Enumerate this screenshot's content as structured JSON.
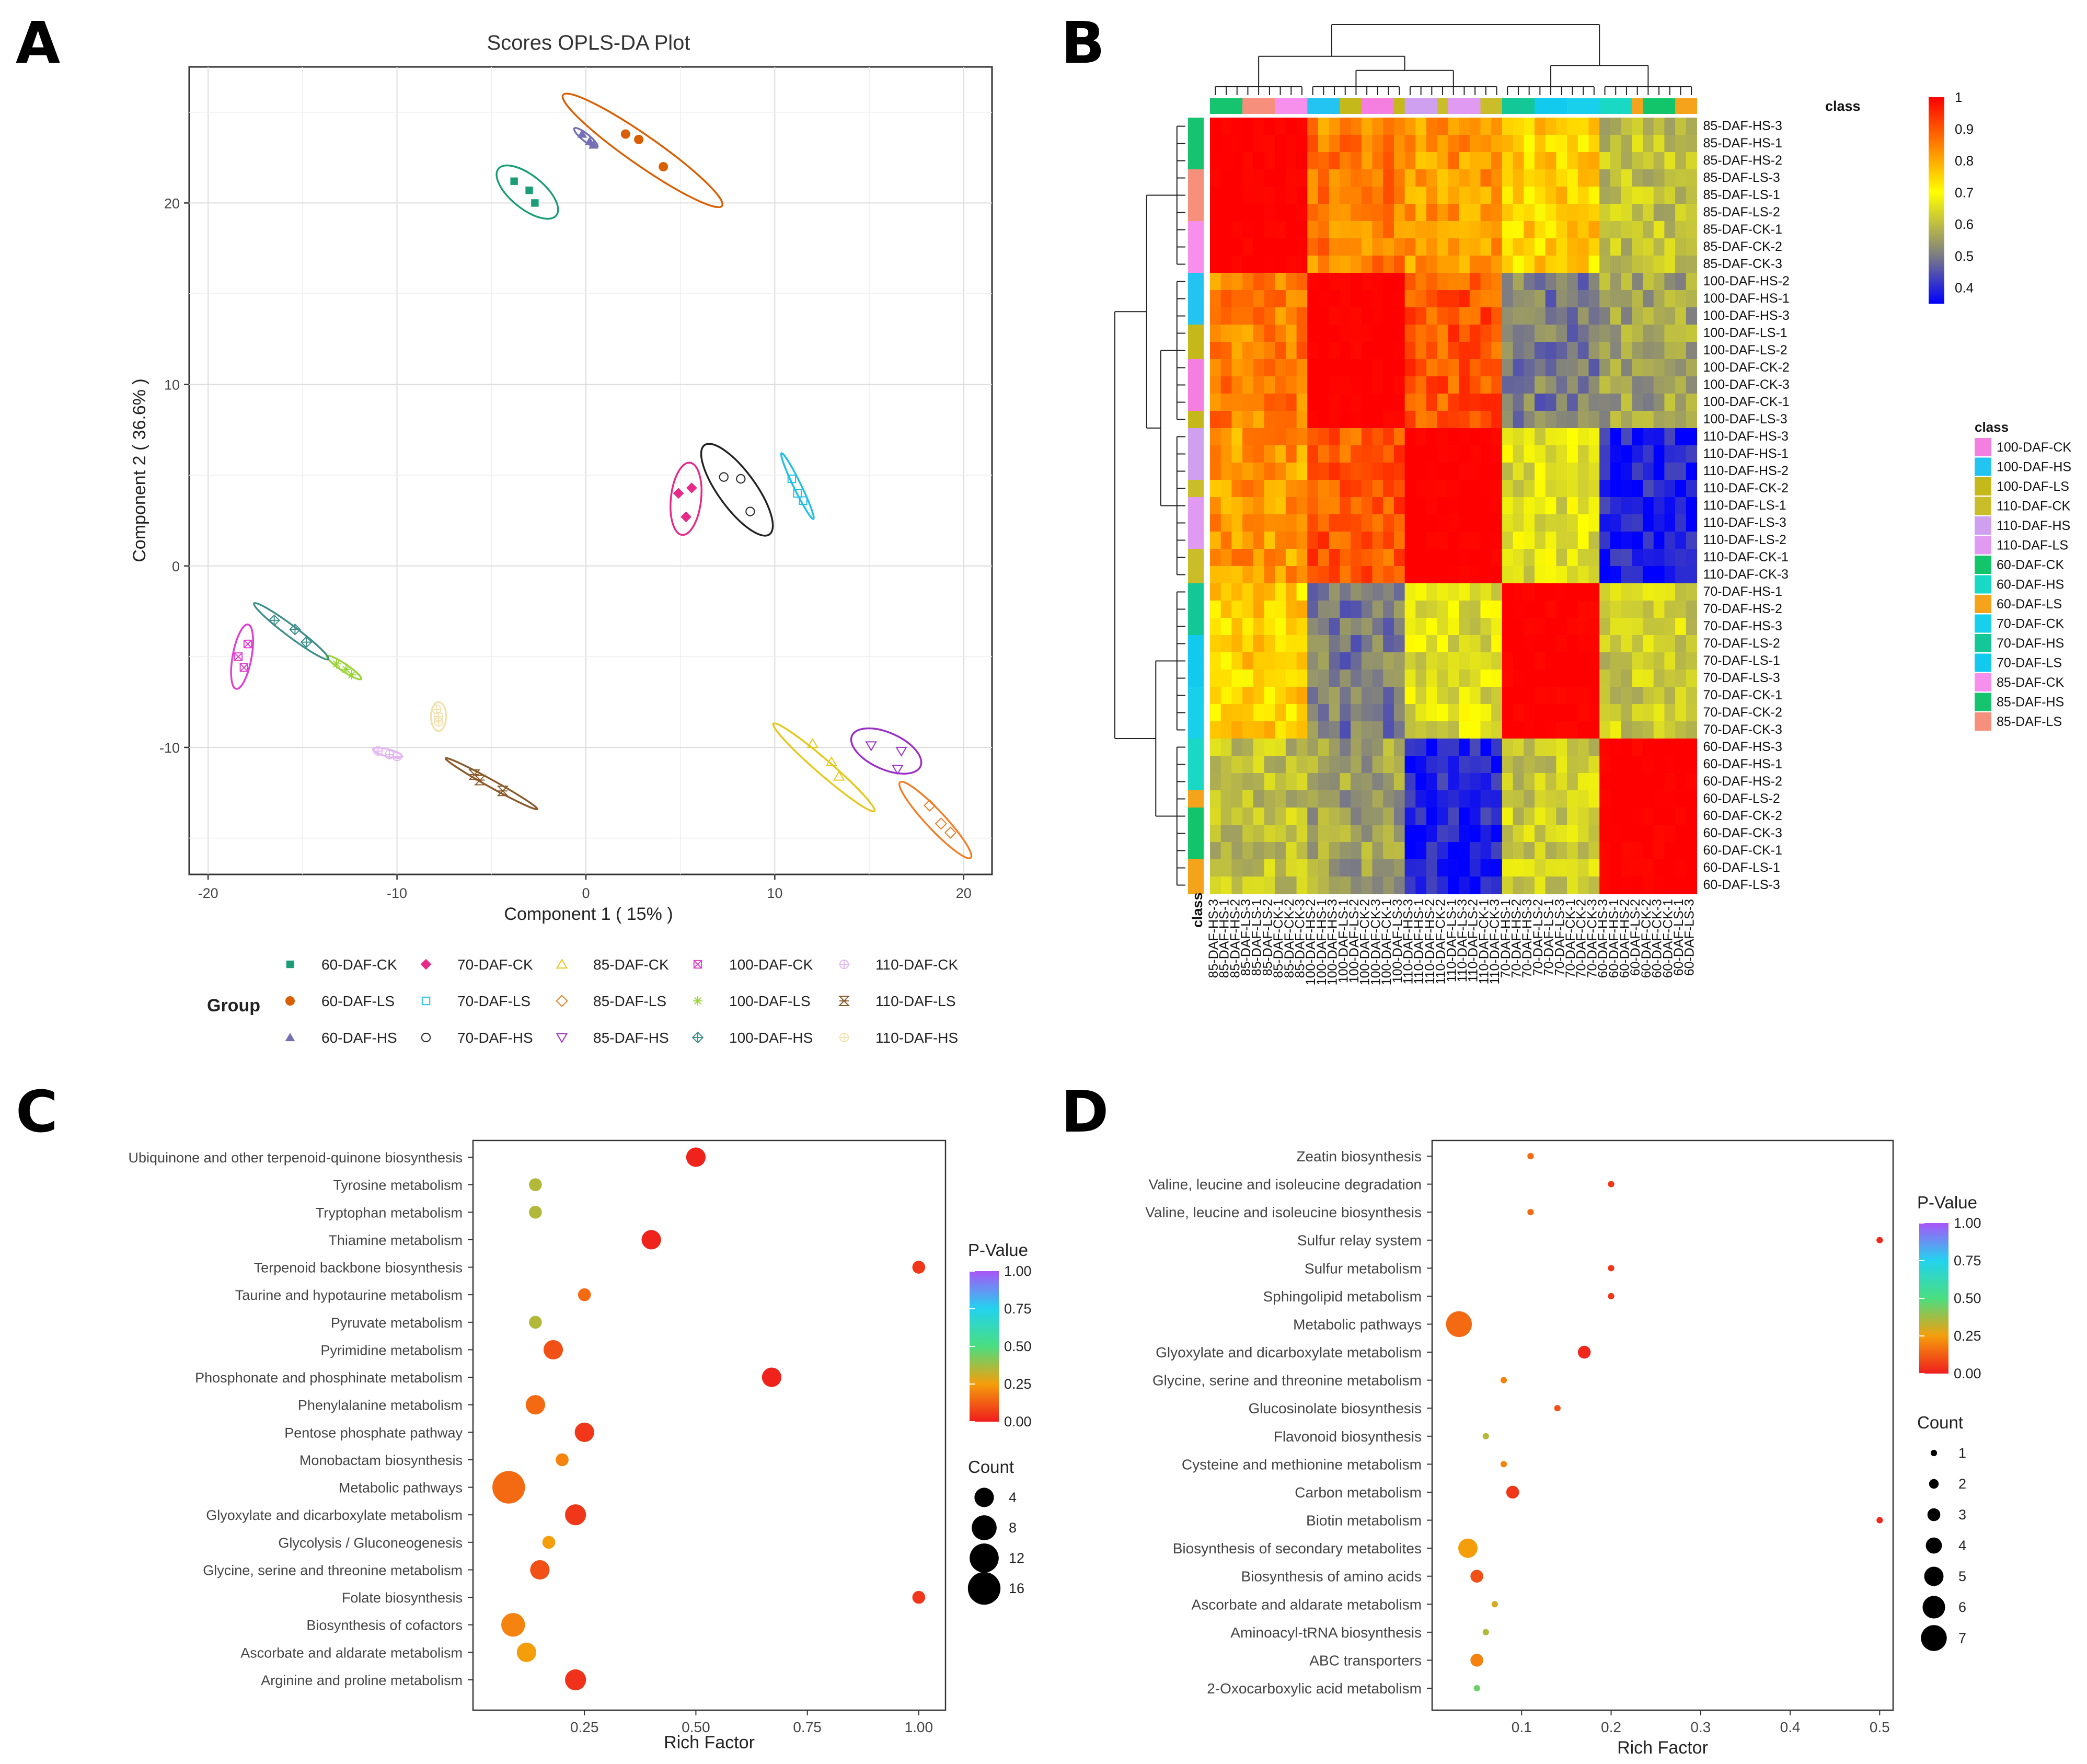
{
  "panels": {
    "a": "A",
    "b": "B",
    "c": "C",
    "d": "D"
  },
  "colors": {
    "60-DAF-CK": "#1b9e77",
    "60-DAF-LS": "#d95f02",
    "60-DAF-HS": "#7570b3",
    "70-DAF-CK": "#e7298a",
    "70-DAF-LS": "#1fbfe6",
    "70-DAF-HS": "#222222",
    "85-DAF-CK": "#e6c81a",
    "85-DAF-LS": "#f07f2a",
    "85-DAF-HS": "#9b30c9",
    "100-DAF-CK": "#e040d0",
    "100-DAF-LS": "#9ad43a",
    "100-DAF-HS": "#3f8f8c",
    "110-DAF-CK": "#e3b7ef",
    "110-DAF-LS": "#8b5a2b",
    "110-DAF-HS": "#f2e1b0"
  },
  "chart_data": [
    {
      "type": "scatter",
      "title": "Scores OPLS-DA Plot",
      "xlabel": "Component 1 ( 15% )",
      "ylabel": "Component 2 ( 36.6% )",
      "xlim": [
        -21,
        21.5
      ],
      "ylim": [
        -17,
        27.5
      ],
      "xticks": [
        -20,
        -10,
        0,
        10,
        20
      ],
      "yticks": [
        -10,
        0,
        10,
        20
      ],
      "legend_title": "Group",
      "legend_order": [
        "60-DAF-CK",
        "70-DAF-CK",
        "85-DAF-CK",
        "100-DAF-CK",
        "110-DAF-CK",
        "60-DAF-LS",
        "70-DAF-LS",
        "85-DAF-LS",
        "100-DAF-LS",
        "110-DAF-LS",
        "60-DAF-HS",
        "70-DAF-HS",
        "85-DAF-HS",
        "100-DAF-HS",
        "110-DAF-HS"
      ],
      "series": [
        {
          "name": "60-DAF-CK",
          "marker": "square",
          "points": [
            [
              -3.8,
              21.2
            ],
            [
              -3.0,
              20.7
            ],
            [
              -2.7,
              20.0
            ]
          ],
          "ellipse": {
            "cx": -3.1,
            "cy": 20.6,
            "rx": 2.0,
            "ry": 0.9,
            "angle": -40
          }
        },
        {
          "name": "60-DAF-LS",
          "marker": "circle",
          "points": [
            [
              2.1,
              23.8
            ],
            [
              2.8,
              23.5
            ],
            [
              4.1,
              22.0
            ]
          ],
          "ellipse": {
            "cx": 3.0,
            "cy": 22.9,
            "rx": 5.2,
            "ry": 0.8,
            "angle": -36
          }
        },
        {
          "name": "60-DAF-HS",
          "marker": "triangle",
          "points": [
            [
              -0.2,
              23.8
            ],
            [
              0.2,
              23.4
            ],
            [
              0.4,
              23.2
            ]
          ],
          "ellipse": {
            "cx": 0.0,
            "cy": 23.6,
            "rx": 0.8,
            "ry": 0.2,
            "angle": -40
          }
        },
        {
          "name": "70-DAF-CK",
          "marker": "diamond",
          "points": [
            [
              4.9,
              4.0
            ],
            [
              5.6,
              4.3
            ],
            [
              5.3,
              2.7
            ]
          ],
          "ellipse": {
            "cx": 5.3,
            "cy": 3.7,
            "rx": 2.0,
            "ry": 0.8,
            "angle": 84
          }
        },
        {
          "name": "70-DAF-LS",
          "marker": "square-open",
          "points": [
            [
              10.9,
              4.8
            ],
            [
              11.2,
              4.0
            ],
            [
              11.5,
              3.6
            ]
          ],
          "ellipse": {
            "cx": 11.2,
            "cy": 4.4,
            "rx": 2.0,
            "ry": 0.2,
            "angle": -65
          }
        },
        {
          "name": "70-DAF-HS",
          "marker": "circle-open",
          "points": [
            [
              7.3,
              4.9
            ],
            [
              8.2,
              4.8
            ],
            [
              8.7,
              3.0
            ]
          ],
          "ellipse": {
            "cx": 8.0,
            "cy": 4.2,
            "rx": 3.0,
            "ry": 1.0,
            "angle": -55
          }
        },
        {
          "name": "85-DAF-CK",
          "marker": "triangle-open",
          "points": [
            [
              12.0,
              -9.8
            ],
            [
              13.0,
              -10.8
            ],
            [
              13.4,
              -11.6
            ]
          ],
          "ellipse": {
            "cx": 12.6,
            "cy": -11.1,
            "rx": 3.6,
            "ry": 0.4,
            "angle": -42
          }
        },
        {
          "name": "85-DAF-LS",
          "marker": "diamond-open",
          "points": [
            [
              18.2,
              -13.2
            ],
            [
              18.8,
              -14.2
            ],
            [
              19.3,
              -14.7
            ]
          ],
          "ellipse": {
            "cx": 18.5,
            "cy": -14.0,
            "rx": 2.8,
            "ry": 0.5,
            "angle": -48
          }
        },
        {
          "name": "85-DAF-HS",
          "marker": "triangle-down-open",
          "points": [
            [
              15.1,
              -9.9
            ],
            [
              16.7,
              -10.2
            ],
            [
              16.5,
              -11.2
            ]
          ],
          "ellipse": {
            "cx": 15.9,
            "cy": -10.2,
            "rx": 2.0,
            "ry": 1.0,
            "angle": -25
          }
        },
        {
          "name": "100-DAF-CK",
          "marker": "square-x",
          "points": [
            [
              -18.4,
              -5.0
            ],
            [
              -18.1,
              -5.6
            ],
            [
              -17.9,
              -4.3
            ]
          ],
          "ellipse": {
            "cx": -18.2,
            "cy": -5.0,
            "rx": 1.8,
            "ry": 0.5,
            "angle": 80
          }
        },
        {
          "name": "100-DAF-LS",
          "marker": "asterisk",
          "points": [
            [
              -13.2,
              -5.4
            ],
            [
              -12.7,
              -5.7
            ],
            [
              -12.4,
              -6.0
            ]
          ],
          "ellipse": {
            "cx": -12.8,
            "cy": -5.6,
            "rx": 1.1,
            "ry": 0.2,
            "angle": -35
          }
        },
        {
          "name": "100-DAF-HS",
          "marker": "diamond-plus",
          "points": [
            [
              -16.5,
              -3.0
            ],
            [
              -15.4,
              -3.5
            ],
            [
              -14.8,
              -4.2
            ]
          ],
          "ellipse": {
            "cx": -15.6,
            "cy": -3.6,
            "rx": 2.5,
            "ry": 0.3,
            "angle": -38
          }
        },
        {
          "name": "110-DAF-CK",
          "marker": "circle-plus",
          "points": [
            [
              -11.0,
              -10.2
            ],
            [
              -10.4,
              -10.4
            ],
            [
              -10.0,
              -10.5
            ]
          ],
          "ellipse": {
            "cx": -10.5,
            "cy": -10.3,
            "rx": 0.8,
            "ry": 0.2,
            "angle": -15
          }
        },
        {
          "name": "110-DAF-LS",
          "marker": "hourglass",
          "points": [
            [
              -5.9,
              -11.5
            ],
            [
              -5.6,
              -11.8
            ],
            [
              -4.4,
              -12.4
            ]
          ],
          "ellipse": {
            "cx": -5.0,
            "cy": -12.0,
            "rx": 2.8,
            "ry": 0.2,
            "angle": -30
          }
        },
        {
          "name": "110-DAF-HS",
          "marker": "circle-plus",
          "points": [
            [
              -7.9,
              -7.9
            ],
            [
              -7.8,
              -8.3
            ],
            [
              -7.8,
              -8.6
            ]
          ],
          "ellipse": {
            "cx": -7.8,
            "cy": -8.3,
            "rx": 0.8,
            "ry": 0.4,
            "angle": 90
          }
        }
      ]
    },
    {
      "type": "heatmap",
      "row_labels": [
        "85-DAF-HS-3",
        "85-DAF-HS-1",
        "85-DAF-HS-2",
        "85-DAF-LS-3",
        "85-DAF-LS-1",
        "85-DAF-LS-2",
        "85-DAF-CK-1",
        "85-DAF-CK-2",
        "85-DAF-CK-3",
        "100-DAF-HS-2",
        "100-DAF-HS-1",
        "100-DAF-HS-3",
        "100-DAF-LS-1",
        "100-DAF-LS-2",
        "100-DAF-CK-2",
        "100-DAF-CK-3",
        "100-DAF-CK-1",
        "100-DAF-LS-3",
        "110-DAF-HS-3",
        "110-DAF-HS-1",
        "110-DAF-HS-2",
        "110-DAF-CK-2",
        "110-DAF-LS-1",
        "110-DAF-LS-3",
        "110-DAF-LS-2",
        "110-DAF-CK-1",
        "110-DAF-CK-3",
        "70-DAF-HS-1",
        "70-DAF-HS-2",
        "70-DAF-HS-3",
        "70-DAF-LS-2",
        "70-DAF-LS-1",
        "70-DAF-LS-3",
        "70-DAF-CK-1",
        "70-DAF-CK-2",
        "70-DAF-CK-3",
        "60-DAF-HS-3",
        "60-DAF-HS-1",
        "60-DAF-HS-2",
        "60-DAF-LS-2",
        "60-DAF-CK-2",
        "60-DAF-CK-3",
        "60-DAF-CK-1",
        "60-DAF-LS-1",
        "60-DAF-LS-3"
      ],
      "column_labels": [
        "85-DAF-HS-3",
        "85-DAF-HS-1",
        "85-DAF-HS-2",
        "85-DAF-LS-3",
        "85-DAF-LS-1",
        "85-DAF-LS-2",
        "85-DAF-CK-1",
        "85-DAF-CK-2",
        "85-DAF-CK-3",
        "100-DAF-HS-2",
        "100-DAF-HS-1",
        "100-DAF-HS-3",
        "100-DAF-LS-1",
        "100-DAF-LS-2",
        "100-DAF-CK-2",
        "100-DAF-CK-3",
        "100-DAF-CK-1",
        "100-DAF-LS-3",
        "110-DAF-HS-3",
        "110-DAF-HS-1",
        "110-DAF-HS-2",
        "110-DAF-CK-2",
        "110-DAF-LS-1",
        "110-DAF-LS-3",
        "110-DAF-LS-2",
        "110-DAF-CK-1",
        "110-DAF-CK-3",
        "70-DAF-HS-1",
        "70-DAF-HS-2",
        "70-DAF-HS-3",
        "70-DAF-LS-2",
        "70-DAF-LS-1",
        "70-DAF-LS-3",
        "70-DAF-CK-1",
        "70-DAF-CK-2",
        "70-DAF-CK-3",
        "60-DAF-HS-3",
        "60-DAF-HS-1",
        "60-DAF-HS-2",
        "60-DAF-LS-2",
        "60-DAF-CK-2",
        "60-DAF-CK-3",
        "60-DAF-CK-1",
        "60-DAF-LS-1",
        "60-DAF-LS-3"
      ],
      "groups": [
        "85",
        "100",
        "110",
        "70",
        "60"
      ],
      "block_values": [
        [
          1.0,
          0.85,
          0.82,
          0.75,
          0.6
        ],
        [
          0.85,
          1.0,
          0.9,
          0.5,
          0.55
        ],
        [
          0.82,
          0.9,
          1.0,
          0.65,
          0.38
        ],
        [
          0.75,
          0.5,
          0.65,
          1.0,
          0.62
        ],
        [
          0.6,
          0.55,
          0.38,
          0.62,
          1.0
        ]
      ],
      "class_label": "class",
      "legend_title": "class",
      "legend_classes": [
        "100-DAF-CK",
        "100-DAF-HS",
        "100-DAF-LS",
        "110-DAF-CK",
        "110-DAF-HS",
        "110-DAF-LS",
        "60-DAF-CK",
        "60-DAF-HS",
        "60-DAF-LS",
        "70-DAF-CK",
        "70-DAF-HS",
        "70-DAF-LS",
        "85-DAF-CK",
        "85-DAF-HS",
        "85-DAF-LS"
      ],
      "class_colors": {
        "100-DAF-CK": "#f47fe0",
        "100-DAF-HS": "#23c4f2",
        "100-DAF-LS": "#c4b81a",
        "110-DAF-CK": "#c9bd2a",
        "110-DAF-HS": "#cfa0f0",
        "110-DAF-LS": "#e09af2",
        "60-DAF-CK": "#12c56b",
        "60-DAF-HS": "#19d9c4",
        "60-DAF-LS": "#f5a31b",
        "70-DAF-CK": "#19d0ec",
        "70-DAF-HS": "#13c796",
        "70-DAF-LS": "#12c9ee",
        "85-DAF-CK": "#f78fec",
        "85-DAF-HS": "#16c46f",
        "85-DAF-LS": "#f6907c"
      },
      "colorbar_ticks": [
        "1",
        "0.9",
        "0.8",
        "0.7",
        "0.6",
        "0.5",
        "0.4"
      ],
      "colorbar_range": [
        0.35,
        1.0
      ]
    },
    {
      "type": "scatter",
      "subtype": "bubble",
      "xlabel": "Rich Factor",
      "xlim": [
        0.0,
        1.06
      ],
      "xticks": [
        "0.25",
        "0.50",
        "0.75",
        "1.00"
      ],
      "categories": [
        "Ubiquinone and other terpenoid-quinone biosynthesis",
        "Tyrosine metabolism",
        "Tryptophan metabolism",
        "Thiamine metabolism",
        "Terpenoid backbone biosynthesis",
        "Taurine and hypotaurine metabolism",
        "Pyruvate metabolism",
        "Pyrimidine metabolism",
        "Phosphonate and phosphinate metabolism",
        "Phenylalanine metabolism",
        "Pentose phosphate pathway",
        "Monobactam biosynthesis",
        "Metabolic pathways",
        "Glyoxylate and dicarboxylate metabolism",
        "Glycolysis / Gluconeogenesis",
        "Glycine, serine and threonine metabolism",
        "Folate biosynthesis",
        "Biosynthesis of cofactors",
        "Ascorbate and aldarate metabolism",
        "Arginine and proline metabolism"
      ],
      "x": [
        0.5,
        0.14,
        0.14,
        0.4,
        1.0,
        0.25,
        0.14,
        0.18,
        0.67,
        0.14,
        0.25,
        0.2,
        0.08,
        0.23,
        0.17,
        0.15,
        1.0,
        0.09,
        0.12,
        0.23
      ],
      "count": [
        4,
        1,
        1,
        4,
        1,
        1,
        1,
        4,
        4,
        4,
        4,
        1,
        16,
        5,
        1,
        4,
        1,
        7,
        4,
        5
      ],
      "pvalue": [
        0.01,
        0.35,
        0.35,
        0.01,
        0.05,
        0.15,
        0.35,
        0.1,
        0.01,
        0.15,
        0.05,
        0.2,
        0.15,
        0.05,
        0.25,
        0.1,
        0.05,
        0.2,
        0.25,
        0.04
      ],
      "legend_pvalue_title": "P-Value",
      "legend_pvalue_ticks": [
        "1.00",
        "0.75",
        "0.50",
        "0.25",
        "0.00"
      ],
      "legend_count_title": "Count",
      "legend_count_values": [
        4,
        8,
        12,
        16
      ]
    },
    {
      "type": "scatter",
      "subtype": "bubble",
      "xlabel": "Rich Factor",
      "xlim": [
        0.0,
        0.515
      ],
      "xticks": [
        "0.1",
        "0.2",
        "0.3",
        "0.4",
        "0.5"
      ],
      "categories": [
        "Zeatin biosynthesis",
        "Valine, leucine and isoleucine degradation",
        "Valine, leucine and isoleucine biosynthesis",
        "Sulfur relay system",
        "Sulfur metabolism",
        "Sphingolipid metabolism",
        "Metabolic pathways",
        "Glyoxylate and dicarboxylate metabolism",
        "Glycine, serine and threonine metabolism",
        "Glucosinolate biosynthesis",
        "Flavonoid biosynthesis",
        "Cysteine and methionine metabolism",
        "Carbon metabolism",
        "Biotin metabolism",
        "Biosynthesis of secondary metabolites",
        "Biosynthesis of amino acids",
        "Ascorbate and aldarate metabolism",
        "Aminoacyl-tRNA biosynthesis",
        "ABC transporters",
        "2-Oxocarboxylic acid metabolism"
      ],
      "x": [
        0.11,
        0.2,
        0.11,
        0.5,
        0.2,
        0.2,
        0.03,
        0.17,
        0.08,
        0.14,
        0.06,
        0.08,
        0.09,
        0.5,
        0.04,
        0.05,
        0.07,
        0.06,
        0.05,
        0.05
      ],
      "count": [
        1,
        1,
        1,
        1,
        1,
        1,
        7,
        3,
        1,
        1,
        1,
        1,
        3,
        1,
        5,
        3,
        1,
        1,
        3,
        1
      ],
      "pvalue": [
        0.15,
        0.05,
        0.15,
        0.02,
        0.05,
        0.05,
        0.15,
        0.02,
        0.2,
        0.1,
        0.35,
        0.2,
        0.05,
        0.02,
        0.25,
        0.1,
        0.3,
        0.35,
        0.2,
        0.45
      ],
      "legend_pvalue_title": "P-Value",
      "legend_pvalue_ticks": [
        "1.00",
        "0.75",
        "0.50",
        "0.25",
        "0.00"
      ],
      "legend_count_title": "Count",
      "legend_count_values": [
        1,
        2,
        3,
        4,
        5,
        6,
        7
      ]
    }
  ]
}
